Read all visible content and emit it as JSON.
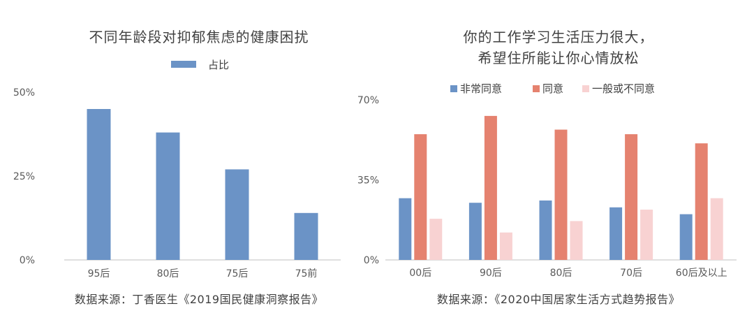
{
  "chart_data": [
    {
      "type": "bar",
      "title": "不同年龄段对抑郁焦虑的健康困扰",
      "legend": {
        "position": "top",
        "entries": [
          "占比"
        ]
      },
      "categories": [
        "95后",
        "80后",
        "75后",
        "75前"
      ],
      "series": [
        {
          "name": "占比",
          "color": "#6b93c6",
          "values": [
            45,
            38,
            27,
            14
          ]
        }
      ],
      "yticks": [
        "0%",
        "25%",
        "50%"
      ],
      "ylim": [
        0,
        50
      ],
      "grid": false,
      "source": "数据来源：丁香医生《2019国民健康洞察报告》"
    },
    {
      "type": "bar",
      "title_lines": [
        "你的工作学习生活压力很大，",
        "希望住所能让你心情放松"
      ],
      "legend": {
        "position": "top",
        "entries": [
          "非常同意",
          "同意",
          "一般或不同意"
        ]
      },
      "categories": [
        "00后",
        "90后",
        "80后",
        "70后",
        "60后及以上"
      ],
      "series": [
        {
          "name": "非常同意",
          "color": "#6b93c6",
          "values": [
            27,
            25,
            26,
            23,
            20
          ]
        },
        {
          "name": "同意",
          "color": "#e5826f",
          "values": [
            55,
            63,
            57,
            55,
            51
          ]
        },
        {
          "name": "一般或不同意",
          "color": "#f8d2d2",
          "values": [
            18,
            12,
            17,
            22,
            27
          ]
        }
      ],
      "yticks": [
        "0%",
        "35%",
        "70%"
      ],
      "ylim": [
        0,
        70
      ],
      "grid": false,
      "source": "数据来源：《2020中国居家生活方式趋势报告》"
    }
  ]
}
